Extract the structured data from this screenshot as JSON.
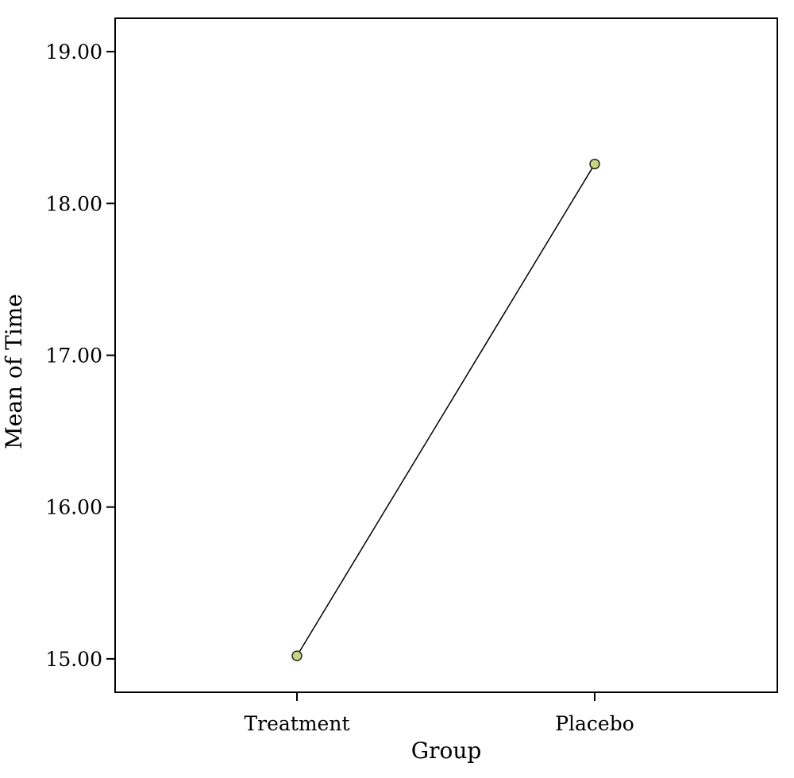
{
  "chart_data": {
    "type": "line",
    "title": "",
    "xlabel": "Group",
    "ylabel": "Mean of Time",
    "categories": [
      "Treatment",
      "Placebo"
    ],
    "series": [
      {
        "values": [
          15.02,
          18.26
        ]
      }
    ],
    "ylim": [
      14.78,
      19.22
    ],
    "yticks": [
      15.0,
      16.0,
      17.0,
      18.0,
      19.0
    ],
    "ytick_labels": [
      "15.00",
      "16.00",
      "17.00",
      "18.00",
      "19.00"
    ],
    "grid": false,
    "legend": "none",
    "colors": {
      "line": "#000000",
      "marker_fill": "#c9d47e",
      "marker_stroke": "#2b2b2b",
      "frame": "#000000"
    }
  }
}
